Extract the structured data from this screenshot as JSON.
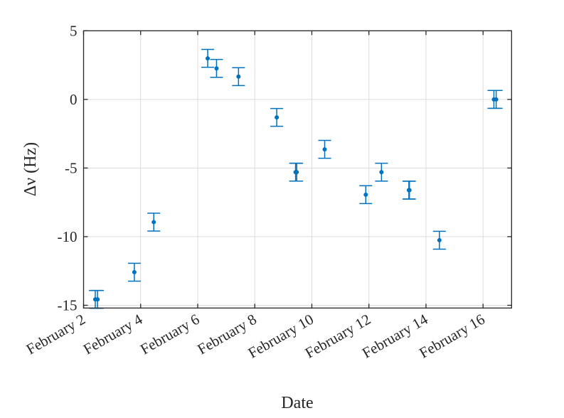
{
  "chart_data": {
    "type": "scatter",
    "subtype": "errorbar",
    "xlabel": "Date",
    "ylabel": "Δν (Hz)",
    "xlim": [
      "02-02 00:00",
      "02-17 00:00"
    ],
    "ylim": [
      -15.2,
      5
    ],
    "grid": true,
    "color": "#0072BD",
    "xticks": [
      {
        "at": "02-02 00:00",
        "label": "February 2"
      },
      {
        "at": "02-04 00:00",
        "label": "February 4"
      },
      {
        "at": "02-06 00:00",
        "label": "February 6"
      },
      {
        "at": "02-08 00:00",
        "label": "February 8"
      },
      {
        "at": "02-10 00:00",
        "label": "February 10"
      },
      {
        "at": "02-12 00:00",
        "label": "February 12"
      },
      {
        "at": "02-14 00:00",
        "label": "February 14"
      },
      {
        "at": "02-16 00:00",
        "label": "February 16"
      }
    ],
    "yticks": [
      {
        "at": 5,
        "label": "5"
      },
      {
        "at": 0,
        "label": "0"
      },
      {
        "at": -5,
        "label": "-5"
      },
      {
        "at": -10,
        "label": "-10"
      },
      {
        "at": -15,
        "label": "-15"
      }
    ],
    "points": [
      {
        "x": "02-02 09:50",
        "y": -14.57,
        "err": 0.65
      },
      {
        "x": "02-02 11:46",
        "y": -14.57,
        "err": 0.65
      },
      {
        "x": "02-03 18:43",
        "y": -12.59,
        "err": 0.65
      },
      {
        "x": "02-04 11:02",
        "y": -8.94,
        "err": 0.65
      },
      {
        "x": "02-06 08:24",
        "y": 2.99,
        "err": 0.65
      },
      {
        "x": "02-06 15:50",
        "y": 2.26,
        "err": 0.65
      },
      {
        "x": "02-07 10:19",
        "y": 1.66,
        "err": 0.65
      },
      {
        "x": "02-08 18:29",
        "y": -1.31,
        "err": 0.65
      },
      {
        "x": "02-09 10:19",
        "y": -5.3,
        "err": 0.65
      },
      {
        "x": "02-09 11:17",
        "y": -5.3,
        "err": 0.65
      },
      {
        "x": "02-10 10:48",
        "y": -3.64,
        "err": 0.65
      },
      {
        "x": "02-11 21:22",
        "y": -6.94,
        "err": 0.65
      },
      {
        "x": "02-12 10:34",
        "y": -5.3,
        "err": 0.65
      },
      {
        "x": "02-13 09:36",
        "y": -6.61,
        "err": 0.65
      },
      {
        "x": "02-13 10:05",
        "y": -6.61,
        "err": 0.65
      },
      {
        "x": "02-14 11:17",
        "y": -10.26,
        "err": 0.65
      },
      {
        "x": "02-16 09:07",
        "y": 0.0,
        "err": 0.65
      },
      {
        "x": "02-16 11:02",
        "y": 0.0,
        "err": 0.65
      }
    ]
  }
}
